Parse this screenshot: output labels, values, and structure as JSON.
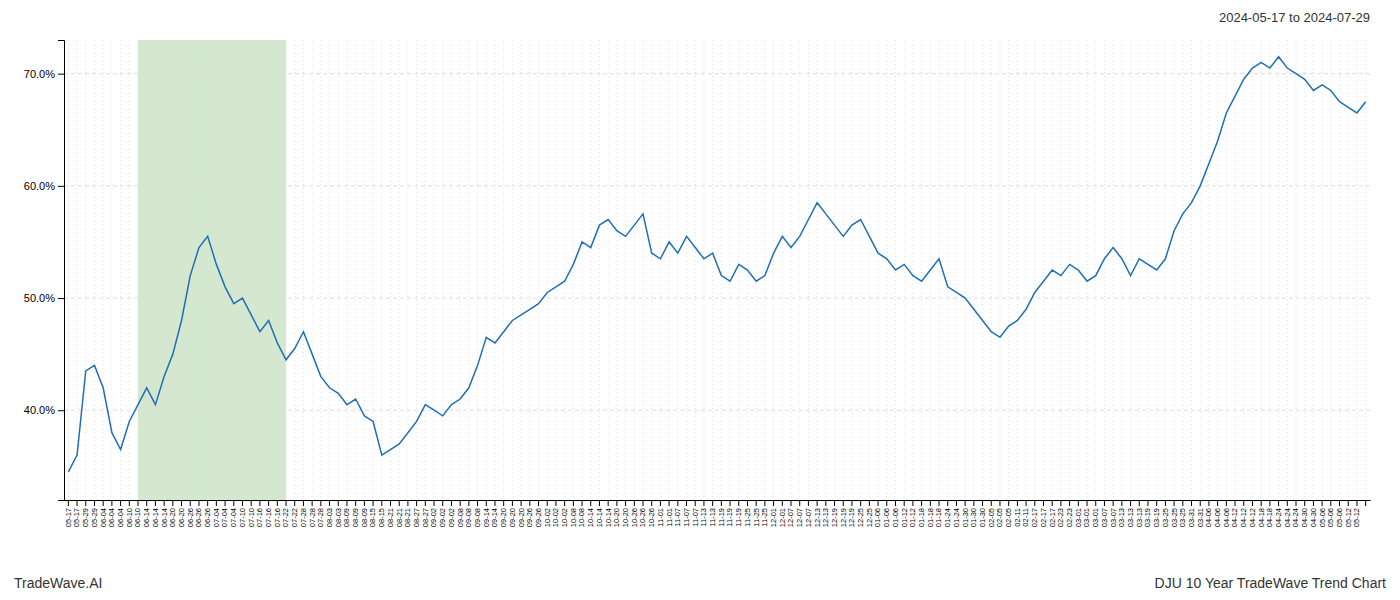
{
  "chart_data": {
    "type": "line",
    "title": "2024-05-17 to 2024-07-29",
    "annotations": [
      "TradeWave.AI",
      "DJU 10 Year TradeWave Trend Chart"
    ],
    "color": "#1f6fb5",
    "grid": true,
    "highlight": {
      "start": 8,
      "end": 25,
      "color": "#d4e8d0"
    },
    "ylim": [
      32,
      73
    ],
    "yticks": [
      {
        "value": 40.0,
        "label": "40.0%"
      },
      {
        "value": 50.0,
        "label": "50.0%"
      },
      {
        "value": 60.0,
        "label": "60.0%"
      },
      {
        "value": 70.0,
        "label": "70.0%"
      }
    ],
    "categories": [
      "05-17",
      "05-17",
      "05-29",
      "05-29",
      "06-04",
      "06-04",
      "06-04",
      "06-10",
      "06-10",
      "06-14",
      "06-14",
      "06-14",
      "06-20",
      "06-20",
      "06-26",
      "06-26",
      "06-26",
      "07-04",
      "07-04",
      "07-04",
      "07-10",
      "07-10",
      "07-16",
      "07-16",
      "07-16",
      "07-22",
      "07-22",
      "07-28",
      "07-28",
      "07-28",
      "08-03",
      "08-03",
      "08-09",
      "08-09",
      "08-09",
      "08-15",
      "08-15",
      "08-21",
      "08-21",
      "08-21",
      "08-27",
      "08-27",
      "09-02",
      "09-02",
      "09-02",
      "09-08",
      "09-08",
      "09-08",
      "09-14",
      "09-14",
      "09-20",
      "09-20",
      "09-20",
      "09-26",
      "09-26",
      "10-02",
      "10-02",
      "10-02",
      "10-08",
      "10-08",
      "10-14",
      "10-14",
      "10-14",
      "10-20",
      "10-20",
      "10-26",
      "10-26",
      "10-26",
      "11-01",
      "11-01",
      "11-07",
      "11-07",
      "11-07",
      "11-13",
      "11-13",
      "11-19",
      "11-19",
      "11-19",
      "11-25",
      "11-25",
      "11-25",
      "12-01",
      "12-01",
      "12-07",
      "12-07",
      "12-07",
      "12-13",
      "12-13",
      "12-19",
      "12-19",
      "12-19",
      "12-25",
      "12-25",
      "01-06",
      "01-06",
      "01-06",
      "01-12",
      "01-12",
      "01-18",
      "01-18",
      "01-18",
      "01-24",
      "01-24",
      "01-30",
      "01-30",
      "01-30",
      "02-05",
      "02-05",
      "02-05",
      "02-11",
      "02-11",
      "02-17",
      "02-17",
      "02-17",
      "02-23",
      "02-23",
      "03-01",
      "03-01",
      "03-01",
      "03-07",
      "03-07",
      "03-13",
      "03-13",
      "03-13",
      "03-19",
      "03-19",
      "03-25",
      "03-25",
      "03-25",
      "03-31",
      "03-31",
      "04-06",
      "04-06",
      "04-06",
      "04-12",
      "04-12",
      "04-12",
      "04-18",
      "04-18",
      "04-24",
      "04-24",
      "04-24",
      "04-30",
      "04-30",
      "05-06",
      "05-06",
      "05-06",
      "05-12",
      "05-12",
      null
    ],
    "values": [
      34.5,
      36.0,
      43.5,
      44.0,
      42.0,
      38.0,
      36.5,
      39.0,
      40.5,
      42.0,
      40.5,
      43.0,
      45.0,
      48.0,
      52.0,
      54.5,
      55.5,
      53.0,
      51.0,
      49.5,
      50.0,
      48.5,
      47.0,
      48.0,
      46.0,
      44.5,
      45.5,
      47.0,
      45.0,
      43.0,
      42.0,
      41.5,
      40.5,
      41.0,
      39.5,
      39.0,
      36.0,
      36.5,
      37.0,
      38.0,
      39.0,
      40.5,
      40.0,
      39.5,
      40.5,
      41.0,
      42.0,
      44.0,
      46.5,
      46.0,
      47.0,
      48.0,
      48.5,
      49.0,
      49.5,
      50.5,
      51.0,
      51.5,
      53.0,
      55.0,
      54.5,
      56.5,
      57.0,
      56.0,
      55.5,
      56.5,
      57.5,
      54.0,
      53.5,
      55.0,
      54.0,
      55.5,
      54.5,
      53.5,
      54.0,
      52.0,
      51.5,
      53.0,
      52.5,
      51.5,
      52.0,
      54.0,
      55.5,
      54.5,
      55.5,
      57.0,
      58.5,
      57.5,
      56.5,
      55.5,
      56.5,
      57.0,
      55.5,
      54.0,
      53.5,
      52.5,
      53.0,
      52.0,
      51.5,
      52.5,
      53.5,
      51.0,
      50.5,
      50.0,
      49.0,
      48.0,
      47.0,
      46.5,
      47.5,
      48.0,
      49.0,
      50.5,
      51.5,
      52.5,
      52.0,
      53.0,
      52.5,
      51.5,
      52.0,
      53.5,
      54.5,
      53.5,
      52.0,
      53.5,
      53.0,
      52.5,
      53.5,
      56.0,
      57.5,
      58.5,
      60.0,
      62.0,
      64.0,
      66.5,
      68.0,
      69.5,
      70.5,
      71.0,
      70.5,
      71.5,
      70.5,
      70.0,
      69.5,
      68.5,
      69.0,
      68.5,
      67.5,
      67.0,
      66.5,
      67.5
    ]
  }
}
